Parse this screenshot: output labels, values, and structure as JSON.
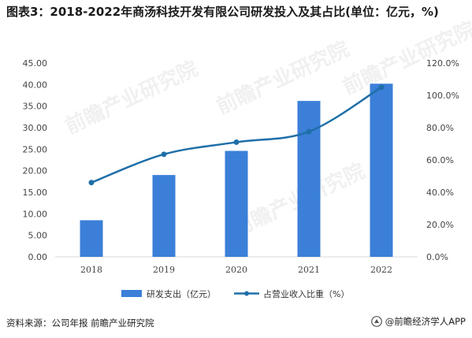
{
  "header": {
    "title": "图表3：2018-2022年商汤科技开发有限公司研发投入及其占比(单位：亿元，%)"
  },
  "chart_data": {
    "type": "bar",
    "categories": [
      "2018",
      "2019",
      "2020",
      "2021",
      "2022"
    ],
    "series": [
      {
        "name": "研发支出（亿元）",
        "type": "bar",
        "axis": "left",
        "values": [
          8.5,
          19.0,
          24.6,
          36.2,
          40.2
        ]
      },
      {
        "name": "占营业收入比重（%）",
        "type": "line",
        "axis": "right",
        "values": [
          46.0,
          63.5,
          71.0,
          77.5,
          105.0
        ]
      }
    ],
    "y_left": {
      "ylim": [
        0,
        45
      ],
      "ticks": [
        "0.00",
        "5.00",
        "10.00",
        "15.00",
        "20.00",
        "25.00",
        "30.00",
        "35.00",
        "40.00",
        "45.00"
      ]
    },
    "y_right": {
      "ylim": [
        0,
        120
      ],
      "ticks": [
        "0.0%",
        "20.0%",
        "40.0%",
        "60.0%",
        "80.0%",
        "100.0%",
        "120.0%"
      ]
    },
    "grid": false,
    "legend_position": "bottom",
    "colors": {
      "bar": "#3b7fd9",
      "line": "#1f6fa8"
    }
  },
  "watermark": {
    "text": "前瞻产业研究院"
  },
  "footer": {
    "source": "资料来源：公司年报 前瞻产业研究院",
    "brand": "@前瞻经济学人APP",
    "logo_icon": "qianzhan-logo-icon"
  }
}
